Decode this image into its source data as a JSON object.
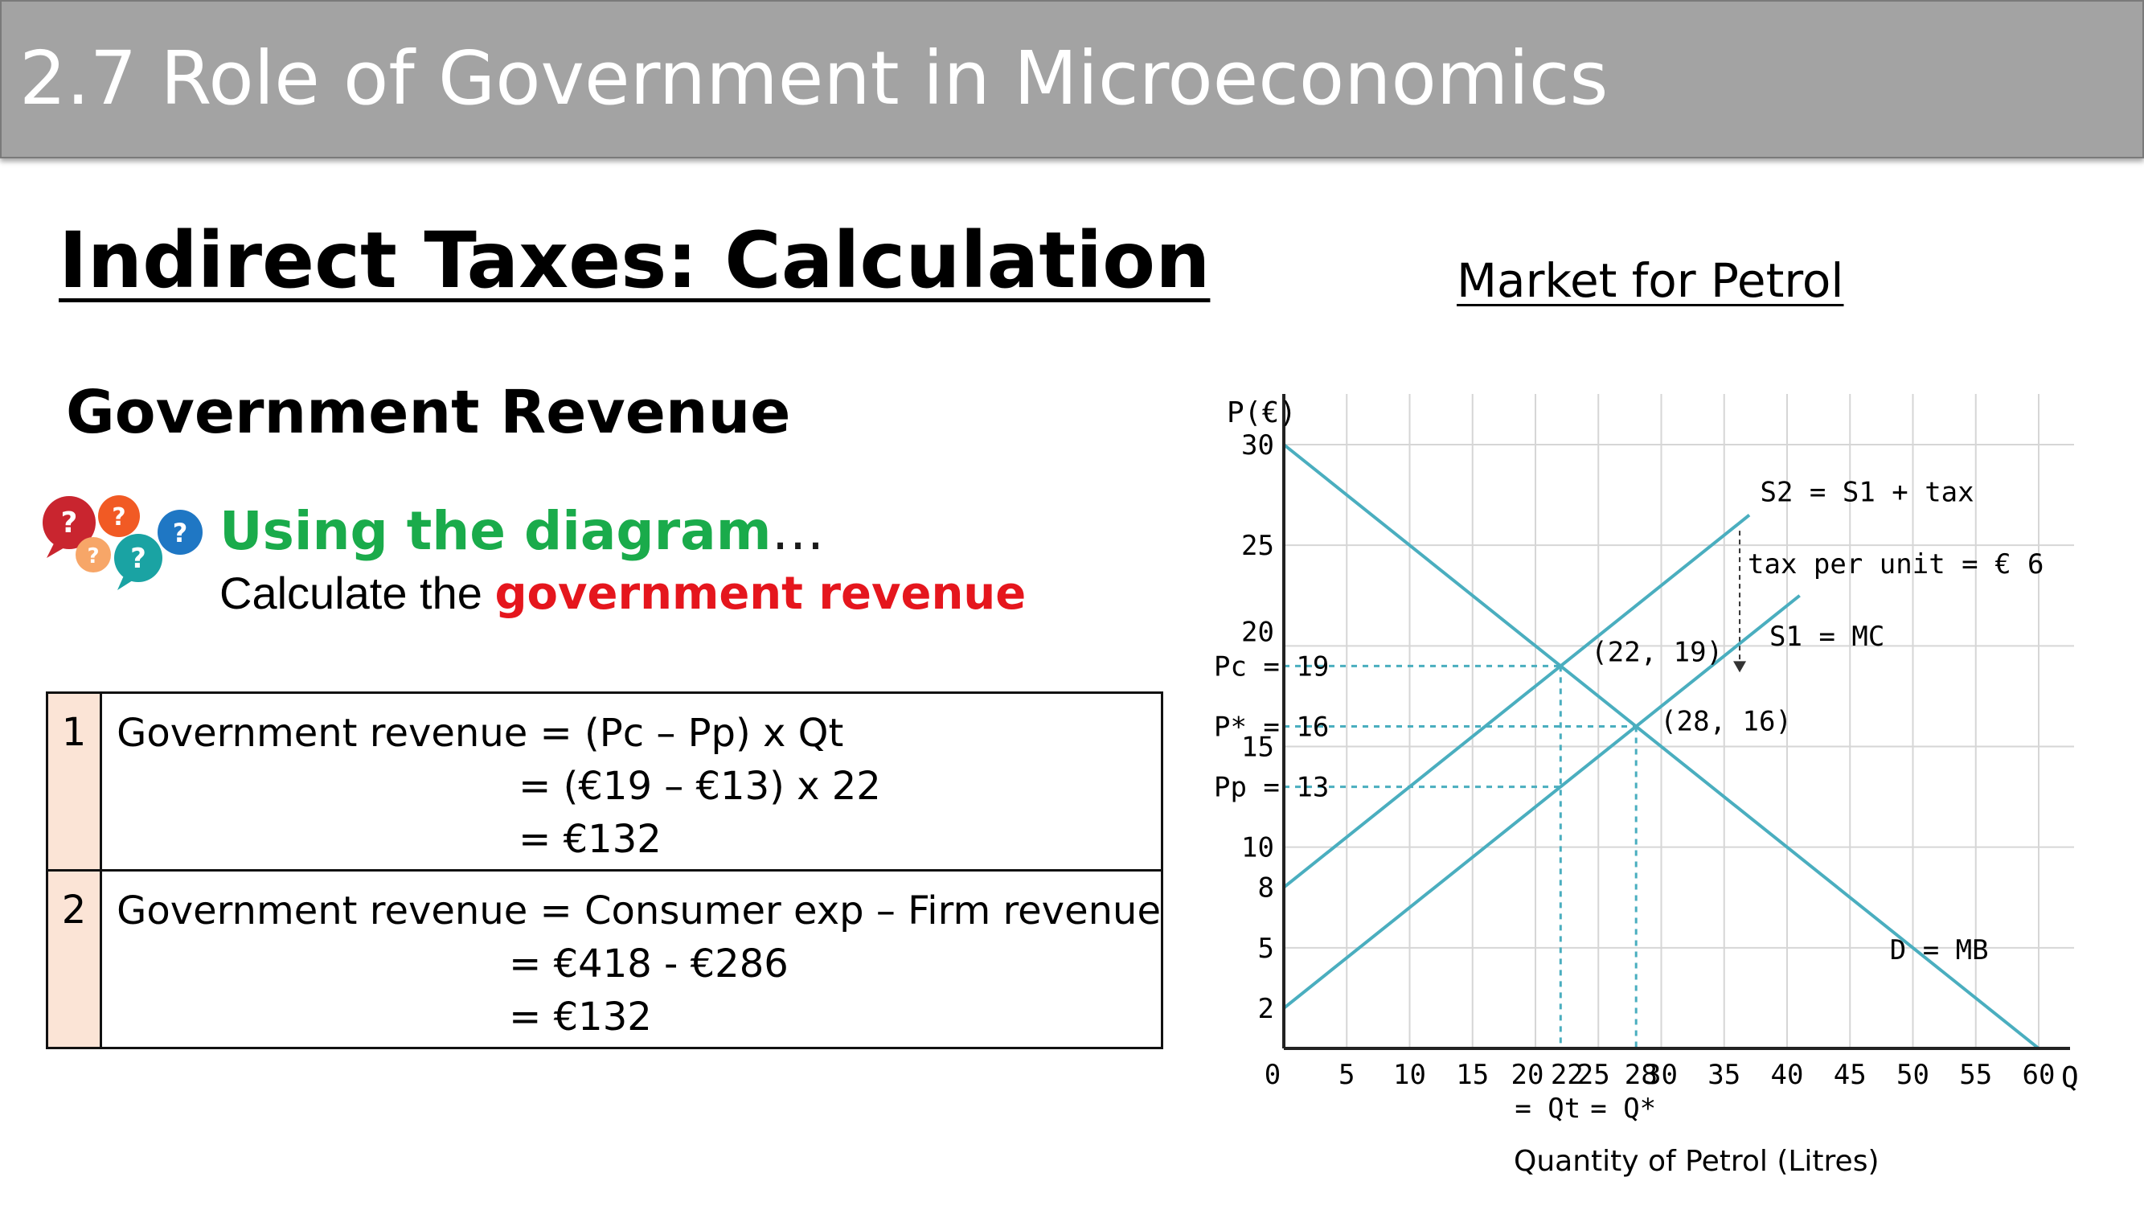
{
  "header": {
    "title": "2.7 Role of Government in Microeconomics"
  },
  "main": {
    "title": "Indirect Taxes: Calculation",
    "subtitle": "Government Revenue",
    "prompt_label": "Using the diagram",
    "prompt_ellipsis": "…",
    "instruction_prefix": "Calculate the",
    "instruction_highlight": "government revenue"
  },
  "table": {
    "rows": [
      {
        "num": "1",
        "lines": [
          "Government revenue = (Pc – Pp) x Qt",
          "= (€19 – €13) x 22",
          "= €132"
        ]
      },
      {
        "num": "2",
        "lines": [
          "Government revenue = Consumer exp – Firm revenue",
          "= €418 - €286",
          "= €132"
        ]
      }
    ]
  },
  "graph": {
    "title": "Market for Petrol",
    "x_caption": "Quantity of Petrol (Litres)"
  },
  "colors": {
    "banner": "#a3a3a3",
    "curve": "#4aaebf",
    "prompt": "#1aab4b",
    "highlight": "#e5161d",
    "table_number_bg": "#fbe4d6"
  },
  "chart_data": {
    "type": "line",
    "ylabel": "P(€)",
    "xlabel": "Q",
    "xlim": [
      0,
      60
    ],
    "ylim": [
      0,
      30
    ],
    "grid": true,
    "x_ticks": [
      "0",
      "5",
      "10",
      "15",
      "20",
      "22",
      "25",
      "28",
      "30",
      "35",
      "40",
      "45",
      "50",
      "55",
      "60"
    ],
    "y_ticks": [
      "2",
      "5",
      "8",
      "10",
      "15",
      "20",
      "25",
      "30"
    ],
    "series": [
      {
        "name": "D = MB",
        "x": [
          0,
          60
        ],
        "y": [
          30,
          0
        ]
      },
      {
        "name": "S1 = MC",
        "x": [
          0,
          41
        ],
        "y": [
          2,
          22.5
        ]
      },
      {
        "name": "S2 = S1 + tax",
        "x": [
          0,
          37
        ],
        "y": [
          8,
          26.5
        ]
      }
    ],
    "points": [
      {
        "label": "(22, 19)",
        "x": 22,
        "y": 19
      },
      {
        "label": "(28, 16)",
        "x": 28,
        "y": 16
      }
    ],
    "price_markers": [
      {
        "label": "Pc = 19",
        "y": 19
      },
      {
        "label": "P* = 16",
        "y": 16
      },
      {
        "label": "Pp = 13",
        "y": 13
      }
    ],
    "quantity_markers": [
      {
        "label": "= Qt",
        "x": 22
      },
      {
        "label": "= Q*",
        "x": 28
      }
    ],
    "annotation": {
      "text": "tax per unit = € 6",
      "x": 37,
      "y_from": 25,
      "y_to": 19
    }
  }
}
